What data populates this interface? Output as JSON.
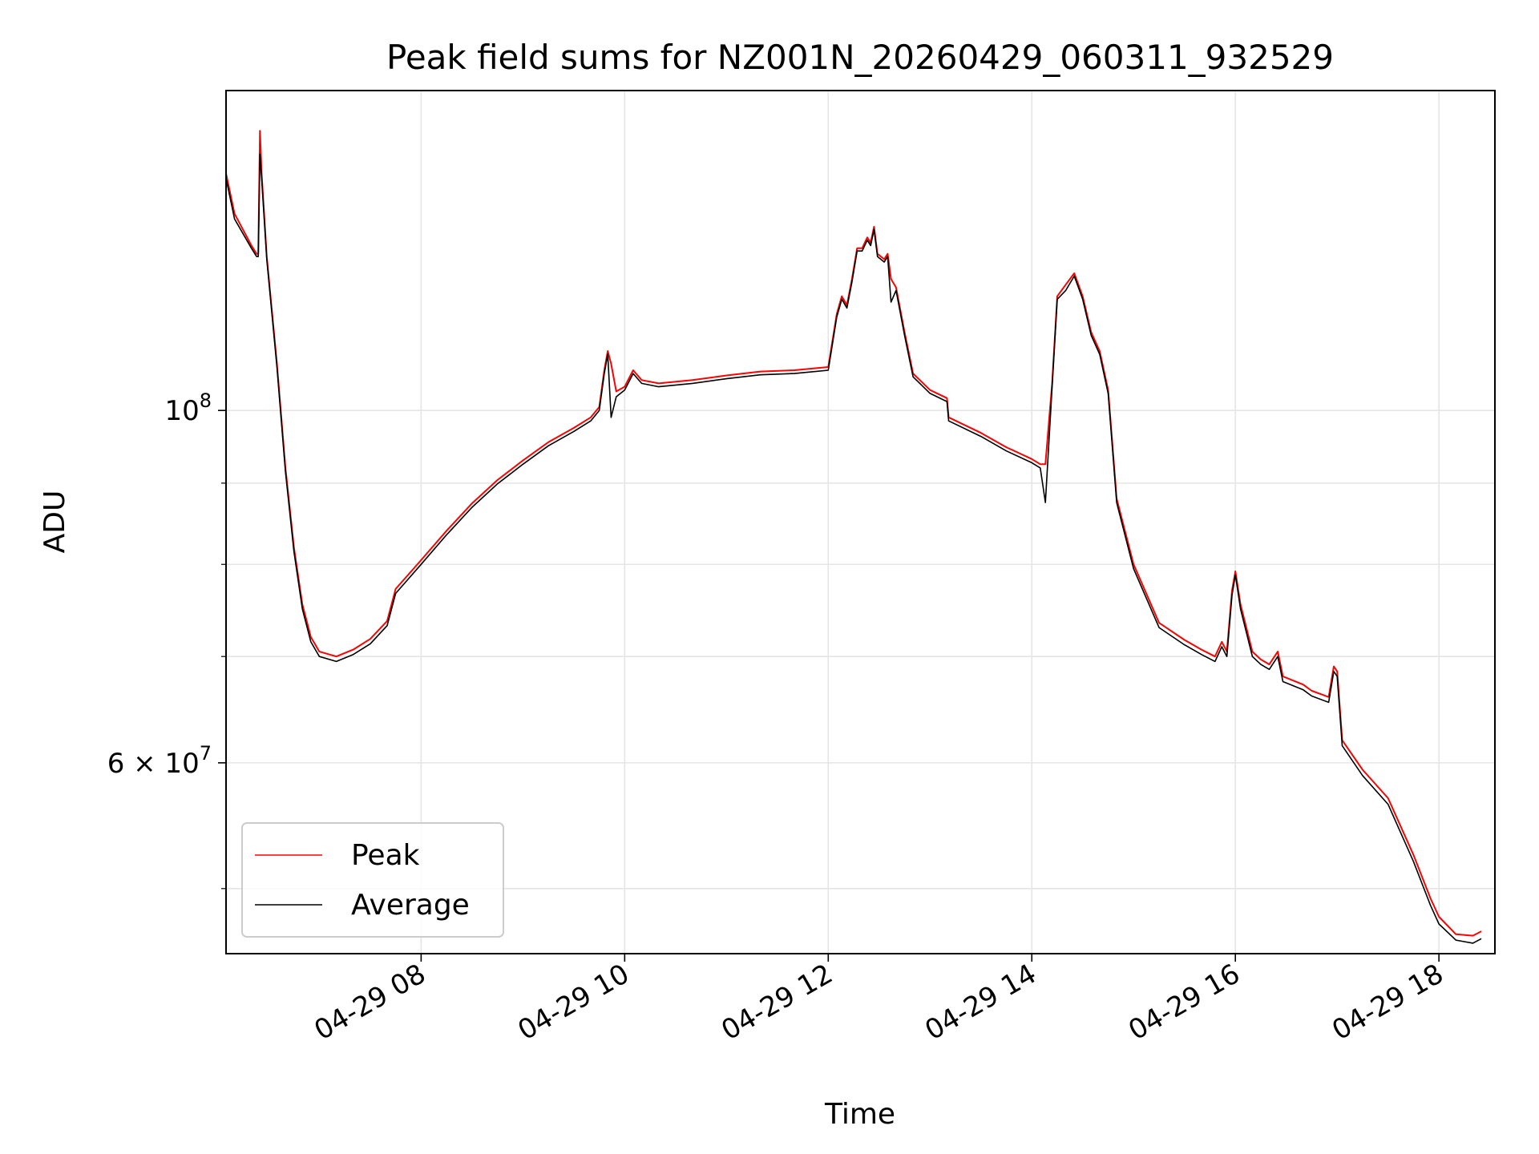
{
  "chart_data": {
    "type": "line",
    "title": "Peak field sums for NZ001N_20260429_060311_932529",
    "xlabel": "Time",
    "ylabel": "ADU",
    "yscale": "log",
    "grid": true,
    "legend_position": "lower-left",
    "xlim": [
      "2026-04-29 06:05",
      "2026-04-29 18:33"
    ],
    "ylim": [
      45500000,
      159000000
    ],
    "x_ticks": [
      {
        "t": "2026-04-29 08:00",
        "label": "04-29 08"
      },
      {
        "t": "2026-04-29 10:00",
        "label": "04-29 10"
      },
      {
        "t": "2026-04-29 12:00",
        "label": "04-29 12"
      },
      {
        "t": "2026-04-29 14:00",
        "label": "04-29 14"
      },
      {
        "t": "2026-04-29 16:00",
        "label": "04-29 16"
      },
      {
        "t": "2026-04-29 18:00",
        "label": "04-29 18"
      }
    ],
    "y_ticks": [
      {
        "value": 100000000,
        "label_base": "10",
        "label_exp": "8"
      },
      {
        "value": 60000000,
        "label_base": "6 × 10",
        "label_exp": "7"
      }
    ],
    "y_minor_gridlines": [
      50000000,
      70000000,
      80000000,
      90000000
    ],
    "series": [
      {
        "name": "Peak",
        "color": "#ff0000",
        "points": [
          [
            "2026-04-29 06:05",
            141000000.0
          ],
          [
            "2026-04-29 06:10",
            133000000.0
          ],
          [
            "2026-04-29 06:20",
            127000000.0
          ],
          [
            "2026-04-29 06:23",
            125500000.0
          ],
          [
            "2026-04-29 06:24",
            125500000.0
          ],
          [
            "2026-04-29 06:25",
            150000000.0
          ],
          [
            "2026-04-29 06:26",
            141000000.0
          ],
          [
            "2026-04-29 06:29",
            125000000.0
          ],
          [
            "2026-04-29 06:35",
            107000000.0
          ],
          [
            "2026-04-29 06:40",
            92000000.0
          ],
          [
            "2026-04-29 06:45",
            82000000.0
          ],
          [
            "2026-04-29 06:50",
            75500000.0
          ],
          [
            "2026-04-29 06:55",
            72000000.0
          ],
          [
            "2026-04-29 07:00",
            70500000.0
          ],
          [
            "2026-04-29 07:10",
            70000000.0
          ],
          [
            "2026-04-29 07:20",
            70700000.0
          ],
          [
            "2026-04-29 07:30",
            71800000.0
          ],
          [
            "2026-04-29 07:40",
            73700000.0
          ],
          [
            "2026-04-29 07:45",
            77200000.0
          ],
          [
            "2026-04-29 08:00",
            80500000.0
          ],
          [
            "2026-04-29 08:15",
            84000000.0
          ],
          [
            "2026-04-29 08:30",
            87400000.0
          ],
          [
            "2026-04-29 08:45",
            90400000.0
          ],
          [
            "2026-04-29 09:00",
            93000000.0
          ],
          [
            "2026-04-29 09:15",
            95500000.0
          ],
          [
            "2026-04-29 09:30",
            97500000.0
          ],
          [
            "2026-04-29 09:40",
            99000000.0
          ],
          [
            "2026-04-29 09:45",
            100500000.0
          ],
          [
            "2026-04-29 09:48",
            106000000.0
          ],
          [
            "2026-04-29 09:50",
            109000000.0
          ],
          [
            "2026-04-29 09:52",
            107000000.0
          ],
          [
            "2026-04-29 09:55",
            102800000.0
          ],
          [
            "2026-04-29 10:00",
            103500000.0
          ],
          [
            "2026-04-29 10:05",
            106000000.0
          ],
          [
            "2026-04-29 10:10",
            104500000.0
          ],
          [
            "2026-04-29 10:20",
            104000000.0
          ],
          [
            "2026-04-29 10:40",
            104500000.0
          ],
          [
            "2026-04-29 11:00",
            105200000.0
          ],
          [
            "2026-04-29 11:20",
            105800000.0
          ],
          [
            "2026-04-29 11:40",
            106000000.0
          ],
          [
            "2026-04-29 12:00",
            106500000.0
          ],
          [
            "2026-04-29 12:05",
            115000000.0
          ],
          [
            "2026-04-29 12:08",
            118000000.0
          ],
          [
            "2026-04-29 12:11",
            116500000.0
          ],
          [
            "2026-04-29 12:14",
            121000000.0
          ],
          [
            "2026-04-29 12:17",
            126500000.0
          ],
          [
            "2026-04-29 12:20",
            126500000.0
          ],
          [
            "2026-04-29 12:23",
            128500000.0
          ],
          [
            "2026-04-29 12:25",
            127500000.0
          ],
          [
            "2026-04-29 12:27",
            130500000.0
          ],
          [
            "2026-04-29 12:29",
            125500000.0
          ],
          [
            "2026-04-29 12:33",
            124500000.0
          ],
          [
            "2026-04-29 12:35",
            125500000.0
          ],
          [
            "2026-04-29 12:37",
            121000000.0
          ],
          [
            "2026-04-29 12:40",
            119500000.0
          ],
          [
            "2026-04-29 12:45",
            112000000.0
          ],
          [
            "2026-04-29 12:50",
            105500000.0
          ],
          [
            "2026-04-29 13:00",
            103000000.0
          ],
          [
            "2026-04-29 13:10",
            101800000.0
          ],
          [
            "2026-04-29 13:11",
            99000000.0
          ],
          [
            "2026-04-29 13:30",
            96800000.0
          ],
          [
            "2026-04-29 13:45",
            94800000.0
          ],
          [
            "2026-04-29 14:00",
            93200000.0
          ],
          [
            "2026-04-29 14:05",
            92500000.0
          ],
          [
            "2026-04-29 14:08",
            92500000.0
          ],
          [
            "2026-04-29 14:12",
            104000000.0
          ],
          [
            "2026-04-29 14:15",
            118000000.0
          ],
          [
            "2026-04-29 14:20",
            120000000.0
          ],
          [
            "2026-04-29 14:25",
            122000000.0
          ],
          [
            "2026-04-29 14:30",
            118000000.0
          ],
          [
            "2026-04-29 14:35",
            112000000.0
          ],
          [
            "2026-04-29 14:40",
            109000000.0
          ],
          [
            "2026-04-29 14:45",
            103000000.0
          ],
          [
            "2026-04-29 14:50",
            88000000.0
          ],
          [
            "2026-04-29 15:00",
            80000000.0
          ],
          [
            "2026-04-29 15:15",
            73500000.0
          ],
          [
            "2026-04-29 15:30",
            71700000.0
          ],
          [
            "2026-04-29 15:40",
            70700000.0
          ],
          [
            "2026-04-29 15:48",
            70000000.0
          ],
          [
            "2026-04-29 15:52",
            71500000.0
          ],
          [
            "2026-04-29 15:55",
            70500000.0
          ],
          [
            "2026-04-29 15:58",
            77000000.0
          ],
          [
            "2026-04-29 16:00",
            79200000.0
          ],
          [
            "2026-04-29 16:03",
            75500000.0
          ],
          [
            "2026-04-29 16:10",
            70500000.0
          ],
          [
            "2026-04-29 16:15",
            69700000.0
          ],
          [
            "2026-04-29 16:20",
            69200000.0
          ],
          [
            "2026-04-29 16:25",
            70500000.0
          ],
          [
            "2026-04-29 16:28",
            68000000.0
          ],
          [
            "2026-04-29 16:40",
            67200000.0
          ],
          [
            "2026-04-29 16:45",
            66600000.0
          ],
          [
            "2026-04-29 16:55",
            66000000.0
          ],
          [
            "2026-04-29 16:58",
            69000000.0
          ],
          [
            "2026-04-29 17:00",
            68500000.0
          ],
          [
            "2026-04-29 17:03",
            62000000.0
          ],
          [
            "2026-04-29 17:15",
            59400000.0
          ],
          [
            "2026-04-29 17:30",
            57000000.0
          ],
          [
            "2026-04-29 17:45",
            52500000.0
          ],
          [
            "2026-04-29 17:55",
            49300000.0
          ],
          [
            "2026-04-29 18:00",
            48000000.0
          ],
          [
            "2026-04-29 18:10",
            46800000.0
          ],
          [
            "2026-04-29 18:20",
            46700000.0
          ],
          [
            "2026-04-29 18:25",
            47000000.0
          ]
        ]
      },
      {
        "name": "Average",
        "color": "#000000",
        "points": [
          [
            "2026-04-29 06:05",
            140000000.0
          ],
          [
            "2026-04-29 06:10",
            132000000.0
          ],
          [
            "2026-04-29 06:20",
            126500000.0
          ],
          [
            "2026-04-29 06:23",
            125000000.0
          ],
          [
            "2026-04-29 06:24",
            125000000.0
          ],
          [
            "2026-04-29 06:25",
            145000000.0
          ],
          [
            "2026-04-29 06:26",
            140000000.0
          ],
          [
            "2026-04-29 06:29",
            124500000.0
          ],
          [
            "2026-04-29 06:35",
            106500000.0
          ],
          [
            "2026-04-29 06:40",
            91500000.0
          ],
          [
            "2026-04-29 06:45",
            81500000.0
          ],
          [
            "2026-04-29 06:50",
            75000000.0
          ],
          [
            "2026-04-29 06:55",
            71500000.0
          ],
          [
            "2026-04-29 07:00",
            70000000.0
          ],
          [
            "2026-04-29 07:10",
            69500000.0
          ],
          [
            "2026-04-29 07:20",
            70200000.0
          ],
          [
            "2026-04-29 07:30",
            71300000.0
          ],
          [
            "2026-04-29 07:40",
            73200000.0
          ],
          [
            "2026-04-29 07:45",
            76700000.0
          ],
          [
            "2026-04-29 08:00",
            80000000.0
          ],
          [
            "2026-04-29 08:15",
            83500000.0
          ],
          [
            "2026-04-29 08:30",
            86900000.0
          ],
          [
            "2026-04-29 08:45",
            89900000.0
          ],
          [
            "2026-04-29 09:00",
            92500000.0
          ],
          [
            "2026-04-29 09:15",
            95000000.0
          ],
          [
            "2026-04-29 09:30",
            97000000.0
          ],
          [
            "2026-04-29 09:40",
            98500000.0
          ],
          [
            "2026-04-29 09:45",
            100000000.0
          ],
          [
            "2026-04-29 09:48",
            105500000.0
          ],
          [
            "2026-04-29 09:50",
            108500000.0
          ],
          [
            "2026-04-29 09:52",
            99000000.0
          ],
          [
            "2026-04-29 09:55",
            102000000.0
          ],
          [
            "2026-04-29 10:00",
            103000000.0
          ],
          [
            "2026-04-29 10:05",
            105500000.0
          ],
          [
            "2026-04-29 10:10",
            104000000.0
          ],
          [
            "2026-04-29 10:20",
            103500000.0
          ],
          [
            "2026-04-29 10:40",
            104000000.0
          ],
          [
            "2026-04-29 11:00",
            104700000.0
          ],
          [
            "2026-04-29 11:20",
            105300000.0
          ],
          [
            "2026-04-29 11:40",
            105500000.0
          ],
          [
            "2026-04-29 12:00",
            106000000.0
          ],
          [
            "2026-04-29 12:05",
            114500000.0
          ],
          [
            "2026-04-29 12:08",
            117500000.0
          ],
          [
            "2026-04-29 12:11",
            116000000.0
          ],
          [
            "2026-04-29 12:14",
            120500000.0
          ],
          [
            "2026-04-29 12:17",
            126000000.0
          ],
          [
            "2026-04-29 12:20",
            126000000.0
          ],
          [
            "2026-04-29 12:23",
            128000000.0
          ],
          [
            "2026-04-29 12:25",
            127000000.0
          ],
          [
            "2026-04-29 12:27",
            130000000.0
          ],
          [
            "2026-04-29 12:29",
            125000000.0
          ],
          [
            "2026-04-29 12:33",
            124000000.0
          ],
          [
            "2026-04-29 12:35",
            125000000.0
          ],
          [
            "2026-04-29 12:37",
            117000000.0
          ],
          [
            "2026-04-29 12:40",
            119000000.0
          ],
          [
            "2026-04-29 12:45",
            111500000.0
          ],
          [
            "2026-04-29 12:50",
            105000000.0
          ],
          [
            "2026-04-29 13:00",
            102500000.0
          ],
          [
            "2026-04-29 13:10",
            101300000.0
          ],
          [
            "2026-04-29 13:11",
            98500000.0
          ],
          [
            "2026-04-29 13:30",
            96300000.0
          ],
          [
            "2026-04-29 13:45",
            94300000.0
          ],
          [
            "2026-04-29 14:00",
            92700000.0
          ],
          [
            "2026-04-29 14:05",
            92000000.0
          ],
          [
            "2026-04-29 14:08",
            87500000.0
          ],
          [
            "2026-04-29 14:12",
            103500000.0
          ],
          [
            "2026-04-29 14:15",
            117500000.0
          ],
          [
            "2026-04-29 14:20",
            119000000.0
          ],
          [
            "2026-04-29 14:25",
            121500000.0
          ],
          [
            "2026-04-29 14:30",
            117500000.0
          ],
          [
            "2026-04-29 14:35",
            111500000.0
          ],
          [
            "2026-04-29 14:40",
            108500000.0
          ],
          [
            "2026-04-29 14:45",
            102500000.0
          ],
          [
            "2026-04-29 14:50",
            87500000.0
          ],
          [
            "2026-04-29 15:00",
            79500000.0
          ],
          [
            "2026-04-29 15:15",
            73000000.0
          ],
          [
            "2026-04-29 15:30",
            71200000.0
          ],
          [
            "2026-04-29 15:40",
            70200000.0
          ],
          [
            "2026-04-29 15:48",
            69500000.0
          ],
          [
            "2026-04-29 15:52",
            71000000.0
          ],
          [
            "2026-04-29 15:55",
            70000000.0
          ],
          [
            "2026-04-29 15:58",
            76500000.0
          ],
          [
            "2026-04-29 16:00",
            78800000.0
          ],
          [
            "2026-04-29 16:03",
            75000000.0
          ],
          [
            "2026-04-29 16:10",
            70000000.0
          ],
          [
            "2026-04-29 16:15",
            69200000.0
          ],
          [
            "2026-04-29 16:20",
            68700000.0
          ],
          [
            "2026-04-29 16:25",
            70000000.0
          ],
          [
            "2026-04-29 16:28",
            67500000.0
          ],
          [
            "2026-04-29 16:40",
            66700000.0
          ],
          [
            "2026-04-29 16:45",
            66100000.0
          ],
          [
            "2026-04-29 16:55",
            65500000.0
          ],
          [
            "2026-04-29 16:58",
            68500000.0
          ],
          [
            "2026-04-29 17:00",
            68000000.0
          ],
          [
            "2026-04-29 17:03",
            61500000.0
          ],
          [
            "2026-04-29 17:15",
            58900000.0
          ],
          [
            "2026-04-29 17:30",
            56500000.0
          ],
          [
            "2026-04-29 17:45",
            52000000.0
          ],
          [
            "2026-04-29 17:55",
            48800000.0
          ],
          [
            "2026-04-29 18:00",
            47500000.0
          ],
          [
            "2026-04-29 18:10",
            46400000.0
          ],
          [
            "2026-04-29 18:20",
            46200000.0
          ],
          [
            "2026-04-29 18:25",
            46500000.0
          ]
        ]
      }
    ]
  }
}
